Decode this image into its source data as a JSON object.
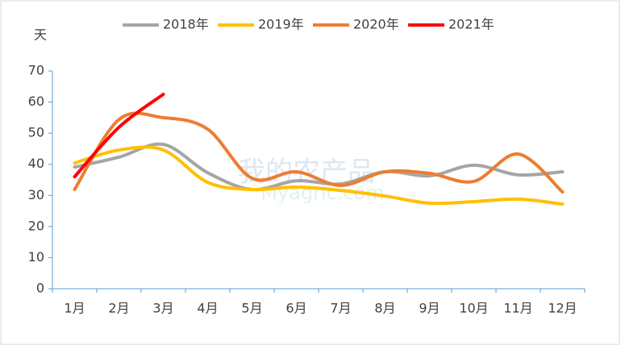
{
  "chart_data": {
    "type": "line",
    "y_label": "天",
    "watermark": [
      "我的农产品",
      "Myagric.com"
    ],
    "categories": [
      "1月",
      "2月",
      "3月",
      "4月",
      "5月",
      "6月",
      "7月",
      "8月",
      "9月",
      "10月",
      "11月",
      "12月"
    ],
    "series": [
      {
        "name": "2018年",
        "color": "#a5a5a5",
        "values": [
          39.1,
          42.3,
          46.4,
          37.3,
          31.9,
          34.7,
          33.7,
          37.6,
          36.3,
          39.7,
          36.6,
          37.6
        ]
      },
      {
        "name": "2019年",
        "color": "#ffc000",
        "values": [
          40.4,
          44.6,
          44.6,
          34.2,
          31.9,
          32.7,
          31.6,
          29.8,
          27.5,
          28.0,
          28.8,
          27.2
        ]
      },
      {
        "name": "2020年",
        "color": "#ed7d31",
        "values": [
          31.9,
          54.4,
          55.0,
          51.3,
          35.5,
          37.6,
          33.2,
          37.6,
          37.1,
          34.5,
          43.3,
          31.1
        ]
      },
      {
        "name": "2021年",
        "color": "#ff0000",
        "values": [
          36.0,
          51.9,
          62.5,
          null,
          null,
          null,
          null,
          null,
          null,
          null,
          null,
          null
        ]
      }
    ],
    "ylim": [
      0,
      70
    ],
    "yticks": [
      0,
      10,
      20,
      30,
      40,
      50,
      60,
      70
    ],
    "smooth": true,
    "legend": "top"
  }
}
